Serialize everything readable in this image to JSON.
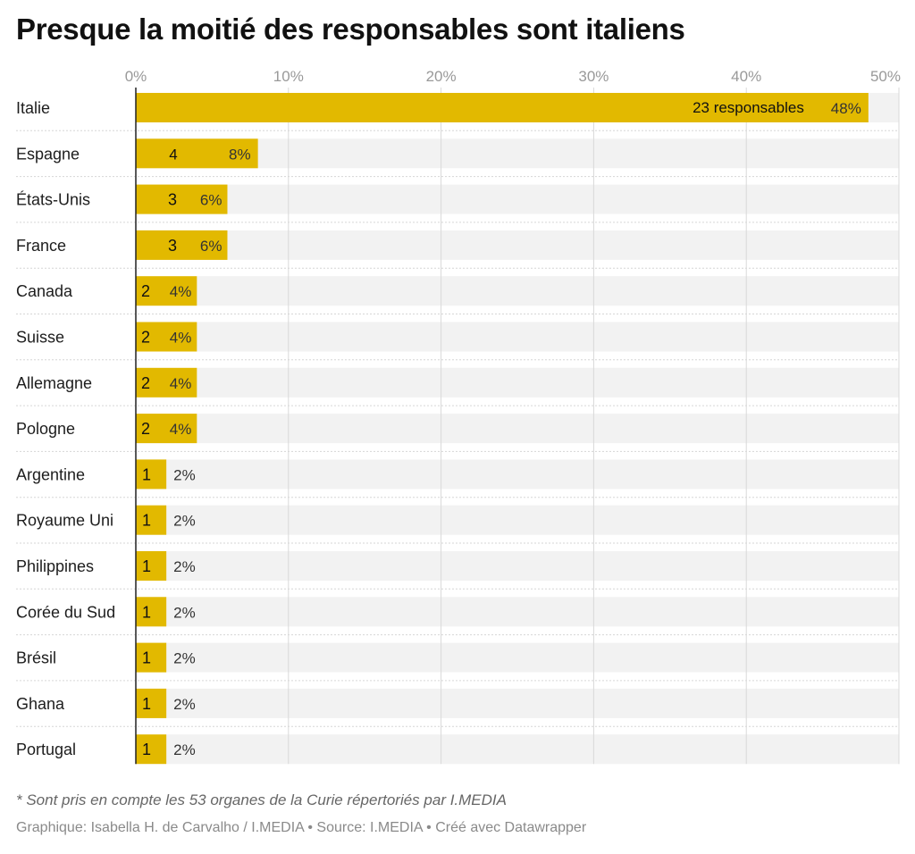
{
  "title": "Presque la moitié des responsables sont italiens",
  "note": "* Sont pris en compte les 53 organes de la Curie répertoriés par I.MEDIA",
  "footer": "Graphique: Isabella H. de Carvalho / I.MEDIA • Source: I.MEDIA • Créé avec Datawrapper",
  "colors": {
    "bar": "#e2b900",
    "background_band": "#f2f2f2",
    "grid": "#d9d9d9",
    "tick_label": "#999999"
  },
  "chart_data": {
    "type": "bar",
    "orientation": "horizontal",
    "xlim": [
      0,
      50
    ],
    "x_ticks": [
      0,
      10,
      20,
      30,
      40,
      50
    ],
    "x_tick_labels": [
      "0%",
      "10%",
      "20%",
      "30%",
      "40%",
      "50%"
    ],
    "grid": true,
    "categories": [
      "Italie",
      "Espagne",
      "États-Unis",
      "France",
      "Canada",
      "Suisse",
      "Allemagne",
      "Pologne",
      "Argentine",
      "Royaume Uni",
      "Philippines",
      "Corée du Sud",
      "Brésil",
      "Ghana",
      "Portugal"
    ],
    "values": [
      48,
      8,
      6,
      6,
      4,
      4,
      4,
      4,
      2,
      2,
      2,
      2,
      2,
      2,
      2
    ],
    "value_labels": [
      "48%",
      "8%",
      "6%",
      "6%",
      "4%",
      "4%",
      "4%",
      "4%",
      "2%",
      "2%",
      "2%",
      "2%",
      "2%",
      "2%",
      "2%"
    ],
    "counts": [
      23,
      4,
      3,
      3,
      2,
      2,
      2,
      2,
      1,
      1,
      1,
      1,
      1,
      1,
      1
    ],
    "count_labels": [
      "23 responsables",
      "4",
      "3",
      "3",
      "2",
      "2",
      "2",
      "2",
      "1",
      "1",
      "1",
      "1",
      "1",
      "1",
      "1"
    ]
  }
}
